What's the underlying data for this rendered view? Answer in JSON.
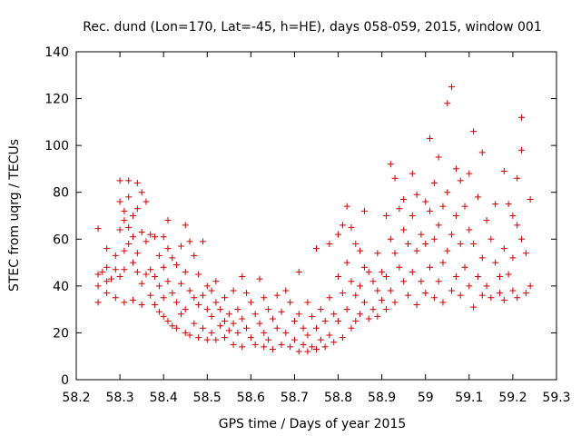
{
  "chart_data": {
    "type": "scatter",
    "title": "Rec. dund (Lon=170, Lat=-45, h=HE), days 058-059, 2015, window 001",
    "xlabel": "GPS time / Days of year 2015",
    "ylabel": "STEC from uqrg / TECUs",
    "xlim": [
      58.2,
      59.3
    ],
    "ylim": [
      0,
      140
    ],
    "xticks": [
      58.2,
      58.3,
      58.4,
      58.5,
      58.6,
      58.7,
      58.8,
      58.9,
      59,
      59.1,
      59.2,
      59.3
    ],
    "xtick_labels": [
      "58.2",
      "58.3",
      "58.4",
      "58.5",
      "58.6",
      "58.7",
      "58.8",
      "58.9",
      "59",
      "59.1",
      "59.2",
      "59.3"
    ],
    "yticks": [
      0,
      20,
      40,
      60,
      80,
      100,
      120,
      140
    ],
    "ytick_labels": [
      "0",
      "20",
      "40",
      "60",
      "80",
      "100",
      "120",
      "140"
    ],
    "grid": false,
    "marker": "+",
    "color": "#cc0000",
    "series": [
      {
        "points": [
          [
            58.25,
            64.5
          ],
          [
            58.25,
            45
          ],
          [
            58.25,
            40
          ],
          [
            58.25,
            33
          ],
          [
            58.26,
            46
          ],
          [
            58.27,
            56
          ],
          [
            58.27,
            48
          ],
          [
            58.27,
            42
          ],
          [
            58.27,
            37
          ],
          [
            58.28,
            43
          ],
          [
            58.29,
            53
          ],
          [
            58.29,
            47
          ],
          [
            58.29,
            35
          ],
          [
            58.3,
            85
          ],
          [
            58.3,
            76
          ],
          [
            58.3,
            64
          ],
          [
            58.3,
            44
          ],
          [
            58.31,
            72
          ],
          [
            58.31,
            68
          ],
          [
            58.31,
            55
          ],
          [
            58.31,
            47
          ],
          [
            58.31,
            33
          ],
          [
            58.32,
            85
          ],
          [
            58.32,
            78
          ],
          [
            58.32,
            65
          ],
          [
            58.32,
            58
          ],
          [
            58.33,
            70
          ],
          [
            58.33,
            61
          ],
          [
            58.33,
            50
          ],
          [
            58.33,
            34
          ],
          [
            58.34,
            84
          ],
          [
            58.34,
            73
          ],
          [
            58.34,
            54
          ],
          [
            58.34,
            46
          ],
          [
            58.35,
            80
          ],
          [
            58.35,
            63
          ],
          [
            58.35,
            41
          ],
          [
            58.35,
            32
          ],
          [
            58.36,
            76
          ],
          [
            58.36,
            59
          ],
          [
            58.36,
            45
          ],
          [
            58.37,
            62
          ],
          [
            58.37,
            47
          ],
          [
            58.37,
            36
          ],
          [
            58.38,
            61
          ],
          [
            58.38,
            44
          ],
          [
            58.38,
            32
          ],
          [
            58.39,
            53
          ],
          [
            58.39,
            40
          ],
          [
            58.39,
            29
          ],
          [
            58.4,
            61
          ],
          [
            58.4,
            48
          ],
          [
            58.4,
            35
          ],
          [
            58.4,
            27
          ],
          [
            58.41,
            68
          ],
          [
            58.41,
            56
          ],
          [
            58.41,
            42
          ],
          [
            58.41,
            25
          ],
          [
            58.42,
            52
          ],
          [
            58.42,
            37
          ],
          [
            58.42,
            23
          ],
          [
            58.43,
            49
          ],
          [
            58.43,
            33
          ],
          [
            58.43,
            22
          ],
          [
            58.44,
            57
          ],
          [
            58.44,
            41
          ],
          [
            58.44,
            28
          ],
          [
            58.45,
            66
          ],
          [
            58.45,
            46
          ],
          [
            58.45,
            30
          ],
          [
            58.45,
            20
          ],
          [
            58.46,
            59
          ],
          [
            58.46,
            38
          ],
          [
            58.46,
            19
          ],
          [
            58.47,
            53
          ],
          [
            58.47,
            35
          ],
          [
            58.47,
            24
          ],
          [
            58.48,
            45
          ],
          [
            58.48,
            32
          ],
          [
            58.48,
            18
          ],
          [
            58.49,
            59
          ],
          [
            58.49,
            36
          ],
          [
            58.49,
            22
          ],
          [
            58.5,
            40
          ],
          [
            58.5,
            30
          ],
          [
            58.5,
            17
          ],
          [
            58.51,
            38
          ],
          [
            58.51,
            27
          ],
          [
            58.51,
            20
          ],
          [
            58.52,
            42
          ],
          [
            58.52,
            33
          ],
          [
            58.52,
            17
          ],
          [
            58.53,
            30
          ],
          [
            58.53,
            23
          ],
          [
            58.54,
            35
          ],
          [
            58.54,
            25
          ],
          [
            58.54,
            18
          ],
          [
            58.55,
            28
          ],
          [
            58.55,
            21
          ],
          [
            58.56,
            38
          ],
          [
            58.56,
            24
          ],
          [
            58.56,
            15
          ],
          [
            58.57,
            30
          ],
          [
            58.57,
            20
          ],
          [
            58.58,
            44
          ],
          [
            58.58,
            26
          ],
          [
            58.58,
            14
          ],
          [
            58.59,
            37
          ],
          [
            58.59,
            22
          ],
          [
            58.6,
            33
          ],
          [
            58.6,
            18
          ],
          [
            58.61,
            28
          ],
          [
            58.61,
            15
          ],
          [
            58.62,
            43
          ],
          [
            58.62,
            24
          ],
          [
            58.63,
            35
          ],
          [
            58.63,
            20
          ],
          [
            58.63,
            14
          ],
          [
            58.64,
            30
          ],
          [
            58.64,
            17
          ],
          [
            58.65,
            26
          ],
          [
            58.65,
            13
          ],
          [
            58.66,
            36
          ],
          [
            58.66,
            22
          ],
          [
            58.67,
            29
          ],
          [
            58.67,
            15
          ],
          [
            58.68,
            38
          ],
          [
            58.68,
            20
          ],
          [
            58.69,
            33
          ],
          [
            58.69,
            14
          ],
          [
            58.7,
            25
          ],
          [
            58.7,
            17
          ],
          [
            58.71,
            46
          ],
          [
            58.71,
            28
          ],
          [
            58.71,
            12
          ],
          [
            58.72,
            22
          ],
          [
            58.72,
            15
          ],
          [
            58.73,
            33
          ],
          [
            58.73,
            19
          ],
          [
            58.73,
            12
          ],
          [
            58.74,
            27
          ],
          [
            58.74,
            14
          ],
          [
            58.75,
            56
          ],
          [
            58.75,
            22
          ],
          [
            58.75,
            13
          ],
          [
            58.76,
            30
          ],
          [
            58.76,
            17
          ],
          [
            58.77,
            25
          ],
          [
            58.77,
            14
          ],
          [
            58.78,
            58
          ],
          [
            58.78,
            35
          ],
          [
            58.78,
            19
          ],
          [
            58.79,
            28
          ],
          [
            58.79,
            16
          ],
          [
            58.8,
            62
          ],
          [
            58.8,
            44
          ],
          [
            58.8,
            25
          ],
          [
            58.81,
            66
          ],
          [
            58.81,
            37
          ],
          [
            58.81,
            18
          ],
          [
            58.82,
            74
          ],
          [
            58.82,
            50
          ],
          [
            58.82,
            30
          ],
          [
            58.83,
            65
          ],
          [
            58.83,
            42
          ],
          [
            58.83,
            22
          ],
          [
            58.84,
            58
          ],
          [
            58.84,
            36
          ],
          [
            58.84,
            25
          ],
          [
            58.85,
            55
          ],
          [
            58.85,
            40
          ],
          [
            58.85,
            28
          ],
          [
            58.86,
            72
          ],
          [
            58.86,
            48
          ],
          [
            58.86,
            33
          ],
          [
            58.87,
            46
          ],
          [
            58.87,
            26
          ],
          [
            58.88,
            42
          ],
          [
            58.88,
            30
          ],
          [
            58.89,
            54
          ],
          [
            58.89,
            38
          ],
          [
            58.89,
            27
          ],
          [
            58.9,
            46
          ],
          [
            58.9,
            34
          ],
          [
            58.91,
            70
          ],
          [
            58.91,
            44
          ],
          [
            58.91,
            30
          ],
          [
            58.92,
            92
          ],
          [
            58.92,
            60
          ],
          [
            58.92,
            38
          ],
          [
            58.93,
            86
          ],
          [
            58.93,
            54
          ],
          [
            58.93,
            33
          ],
          [
            58.94,
            73
          ],
          [
            58.94,
            48
          ],
          [
            58.95,
            77
          ],
          [
            58.95,
            64
          ],
          [
            58.95,
            42
          ],
          [
            58.96,
            58
          ],
          [
            58.96,
            36
          ],
          [
            58.97,
            88
          ],
          [
            58.97,
            70
          ],
          [
            58.97,
            46
          ],
          [
            58.98,
            79
          ],
          [
            58.98,
            55
          ],
          [
            58.98,
            32
          ],
          [
            58.99,
            62
          ],
          [
            58.99,
            42
          ],
          [
            59,
            76
          ],
          [
            59,
            58
          ],
          [
            59,
            37
          ],
          [
            59.01,
            103
          ],
          [
            59.01,
            72
          ],
          [
            59.01,
            48
          ],
          [
            59.02,
            84
          ],
          [
            59.02,
            60
          ],
          [
            59.02,
            35
          ],
          [
            59.03,
            95
          ],
          [
            59.03,
            66
          ],
          [
            59.03,
            42
          ],
          [
            59.04,
            74
          ],
          [
            59.04,
            50
          ],
          [
            59.04,
            33
          ],
          [
            59.05,
            118
          ],
          [
            59.05,
            80
          ],
          [
            59.05,
            55
          ],
          [
            59.06,
            125
          ],
          [
            59.06,
            62
          ],
          [
            59.06,
            38
          ],
          [
            59.07,
            90
          ],
          [
            59.07,
            70
          ],
          [
            59.07,
            44
          ],
          [
            59.08,
            85
          ],
          [
            59.08,
            58
          ],
          [
            59.08,
            36
          ],
          [
            59.09,
            74
          ],
          [
            59.09,
            48
          ],
          [
            59.1,
            88
          ],
          [
            59.1,
            64
          ],
          [
            59.1,
            40
          ],
          [
            59.11,
            106
          ],
          [
            59.11,
            58
          ],
          [
            59.11,
            31
          ],
          [
            59.12,
            78
          ],
          [
            59.12,
            44
          ],
          [
            59.13,
            97
          ],
          [
            59.13,
            52
          ],
          [
            59.13,
            36
          ],
          [
            59.14,
            68
          ],
          [
            59.14,
            40
          ],
          [
            59.15,
            60
          ],
          [
            59.15,
            35
          ],
          [
            59.16,
            75
          ],
          [
            59.16,
            50
          ],
          [
            59.17,
            44
          ],
          [
            59.17,
            37
          ],
          [
            59.18,
            89
          ],
          [
            59.18,
            56
          ],
          [
            59.18,
            34
          ],
          [
            59.19,
            75
          ],
          [
            59.19,
            45
          ],
          [
            59.2,
            70
          ],
          [
            59.2,
            52
          ],
          [
            59.2,
            38
          ],
          [
            59.21,
            86
          ],
          [
            59.21,
            66
          ],
          [
            59.21,
            35
          ],
          [
            59.22,
            112
          ],
          [
            59.22,
            98
          ],
          [
            59.22,
            60
          ],
          [
            59.23,
            54
          ],
          [
            59.23,
            37
          ],
          [
            59.24,
            77
          ],
          [
            59.24,
            40
          ]
        ]
      }
    ]
  }
}
